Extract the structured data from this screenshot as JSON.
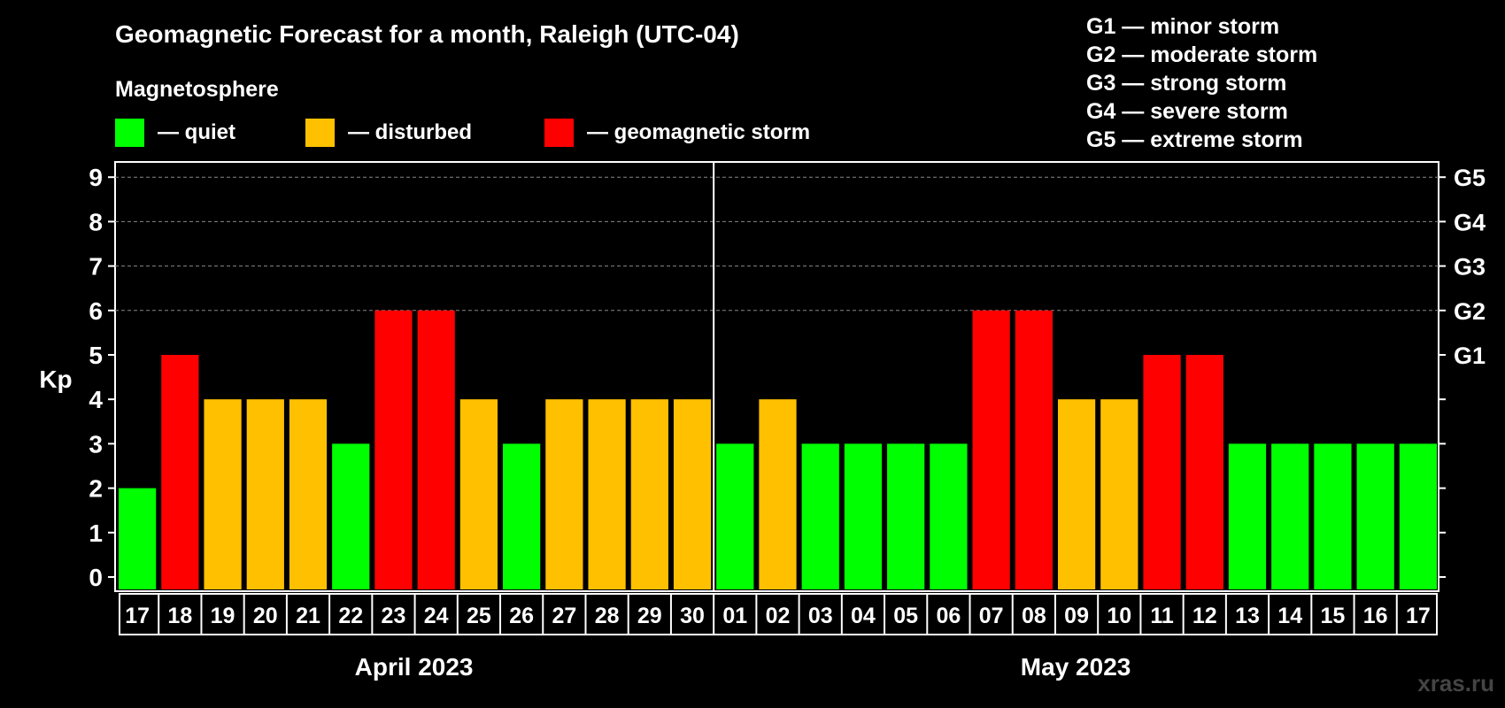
{
  "title": "Geomagnetic Forecast for a month, Raleigh (UTC-04)",
  "legend_heading": "Magnetosphere",
  "legend": [
    {
      "label": "— quiet",
      "color": "#00ff00"
    },
    {
      "label": "— disturbed",
      "color": "#ffc000"
    },
    {
      "label": "— geomagnetic storm",
      "color": "#ff0000"
    }
  ],
  "storm_scale": [
    "G1 — minor storm",
    "G2 — moderate storm",
    "G3 — strong storm",
    "G4 — severe storm",
    "G5 — extreme storm"
  ],
  "watermark": "xras.ru",
  "chart_data": {
    "type": "bar",
    "ylabel": "Kp",
    "ylim": [
      0,
      9
    ],
    "yticks": [
      0,
      1,
      2,
      3,
      4,
      5,
      6,
      7,
      8,
      9
    ],
    "right_axis_labels": [
      {
        "kp": 5,
        "label": "G1"
      },
      {
        "kp": 6,
        "label": "G2"
      },
      {
        "kp": 7,
        "label": "G3"
      },
      {
        "kp": 8,
        "label": "G4"
      },
      {
        "kp": 9,
        "label": "G5"
      }
    ],
    "grid": "horizontal dashed at Kp 6-9",
    "categories": [
      "17",
      "18",
      "19",
      "20",
      "21",
      "22",
      "23",
      "24",
      "25",
      "26",
      "27",
      "28",
      "29",
      "30",
      "01",
      "02",
      "03",
      "04",
      "05",
      "06",
      "07",
      "08",
      "09",
      "10",
      "11",
      "12",
      "13",
      "14",
      "15",
      "16",
      "17"
    ],
    "values": [
      2,
      5,
      4,
      4,
      4,
      3,
      6,
      6,
      4,
      3,
      4,
      4,
      4,
      4,
      3,
      4,
      3,
      3,
      3,
      3,
      6,
      6,
      4,
      4,
      5,
      5,
      3,
      3,
      3,
      3,
      3
    ],
    "colors": {
      "quiet": "#00ff00",
      "disturbed": "#ffc000",
      "storm": "#ff0000"
    },
    "months": [
      {
        "label": "April 2023",
        "days": 14
      },
      {
        "label": "May 2023",
        "days": 17
      }
    ]
  }
}
